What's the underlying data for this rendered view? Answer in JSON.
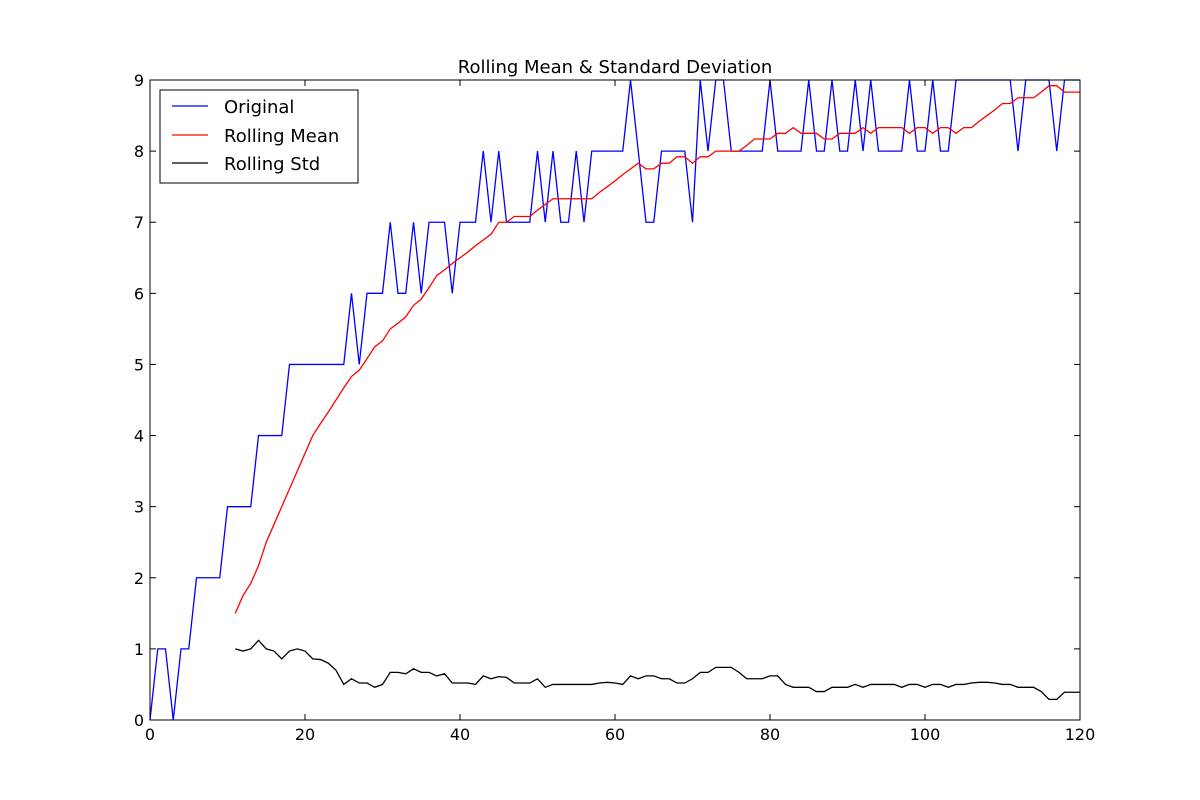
{
  "chart_data": {
    "type": "line",
    "title": "Rolling Mean & Standard Deviation",
    "xlabel": "",
    "ylabel": "",
    "xlim": [
      0,
      120
    ],
    "ylim": [
      0,
      9
    ],
    "xticks": [
      "0",
      "20",
      "40",
      "60",
      "80",
      "100",
      "120"
    ],
    "yticks": [
      "0",
      "1",
      "2",
      "3",
      "4",
      "5",
      "6",
      "7",
      "8",
      "9"
    ],
    "grid": false,
    "legend_position": "upper-left",
    "series": [
      {
        "name": "Original",
        "color": "#0000ff",
        "x": [
          0,
          1,
          2,
          3,
          4,
          5,
          6,
          7,
          8,
          9,
          10,
          11,
          12,
          13,
          14,
          15,
          16,
          17,
          18,
          19,
          20,
          21,
          22,
          23,
          24,
          25,
          26,
          27,
          28,
          29,
          30,
          31,
          32,
          33,
          34,
          35,
          36,
          37,
          38,
          39,
          40,
          41,
          42,
          43,
          44,
          45,
          46,
          47,
          48,
          49,
          50,
          51,
          52,
          53,
          54,
          55,
          56,
          57,
          58,
          59,
          60,
          61,
          62,
          63,
          64,
          65,
          66,
          67,
          68,
          69,
          70,
          71,
          72,
          73,
          74,
          75,
          76,
          77,
          78,
          79,
          80,
          81,
          82,
          83,
          84,
          85,
          86,
          87,
          88,
          89,
          90,
          91,
          92,
          93,
          94,
          95,
          96,
          97,
          98,
          99,
          100,
          101,
          102,
          103,
          104,
          105,
          106,
          107,
          108,
          109,
          110,
          111,
          112,
          113,
          114,
          115,
          116,
          117,
          118,
          119,
          120
        ],
        "y": [
          0,
          1,
          1,
          0,
          1,
          1,
          2,
          2,
          2,
          2,
          3,
          3,
          3,
          3,
          4,
          4,
          4,
          4,
          5,
          5,
          5,
          5,
          5,
          5,
          5,
          5,
          6,
          5,
          6,
          6,
          6,
          7,
          6,
          6,
          7,
          6,
          7,
          7,
          7,
          6,
          7,
          7,
          7,
          8,
          7,
          8,
          7,
          7,
          7,
          7,
          8,
          7,
          8,
          7,
          7,
          8,
          7,
          8,
          8,
          8,
          8,
          8,
          9,
          8,
          7,
          7,
          8,
          8,
          8,
          8,
          7,
          9,
          8,
          9,
          9,
          8,
          8,
          8,
          8,
          8,
          9,
          8,
          8,
          8,
          8,
          9,
          8,
          8,
          9,
          8,
          8,
          9,
          8,
          9,
          8,
          8,
          8,
          8,
          9,
          8,
          8,
          9,
          8,
          8,
          9,
          9,
          9,
          9,
          9,
          9,
          9,
          9,
          8,
          9,
          9,
          9,
          9,
          8,
          9,
          9,
          9
        ]
      },
      {
        "name": "Rolling Mean",
        "color": "#ff0000",
        "x": [
          11,
          12,
          13,
          14,
          15,
          16,
          17,
          18,
          19,
          20,
          21,
          22,
          23,
          24,
          25,
          26,
          27,
          28,
          29,
          30,
          31,
          32,
          33,
          34,
          35,
          36,
          37,
          38,
          39,
          40,
          41,
          42,
          43,
          44,
          45,
          46,
          47,
          48,
          49,
          50,
          51,
          52,
          53,
          54,
          55,
          56,
          57,
          58,
          59,
          60,
          61,
          62,
          63,
          64,
          65,
          66,
          67,
          68,
          69,
          70,
          71,
          72,
          73,
          74,
          75,
          76,
          77,
          78,
          79,
          80,
          81,
          82,
          83,
          84,
          85,
          86,
          87,
          88,
          89,
          90,
          91,
          92,
          93,
          94,
          95,
          96,
          97,
          98,
          99,
          100,
          101,
          102,
          103,
          104,
          105,
          106,
          107,
          108,
          109,
          110,
          111,
          112,
          113,
          114,
          115,
          116,
          117,
          118,
          119,
          120
        ],
        "y": [
          1.5,
          1.75,
          1.92,
          2.17,
          2.5,
          2.75,
          3.0,
          3.25,
          3.5,
          3.75,
          4.0,
          4.17,
          4.33,
          4.5,
          4.67,
          4.83,
          4.92,
          5.08,
          5.25,
          5.33,
          5.5,
          5.58,
          5.67,
          5.83,
          5.92,
          6.08,
          6.25,
          6.33,
          6.42,
          6.5,
          6.58,
          6.67,
          6.75,
          6.83,
          7.0,
          7.0,
          7.08,
          7.08,
          7.08,
          7.17,
          7.25,
          7.33,
          7.33,
          7.33,
          7.33,
          7.33,
          7.33,
          7.42,
          7.5,
          7.58,
          7.67,
          7.75,
          7.83,
          7.75,
          7.75,
          7.83,
          7.83,
          7.92,
          7.92,
          7.83,
          7.92,
          7.92,
          8.0,
          8.0,
          8.0,
          8.0,
          8.08,
          8.17,
          8.17,
          8.17,
          8.25,
          8.25,
          8.33,
          8.25,
          8.25,
          8.25,
          8.17,
          8.17,
          8.25,
          8.25,
          8.25,
          8.33,
          8.25,
          8.33,
          8.33,
          8.33,
          8.33,
          8.25,
          8.33,
          8.33,
          8.25,
          8.33,
          8.33,
          8.25,
          8.33,
          8.33,
          8.42,
          8.5,
          8.58,
          8.67,
          8.67,
          8.75,
          8.75,
          8.75,
          8.83,
          8.92,
          8.92,
          8.83,
          8.83,
          8.83
        ]
      },
      {
        "name": "Rolling Std",
        "color": "#000000",
        "x": [
          11,
          12,
          13,
          14,
          15,
          16,
          17,
          18,
          19,
          20,
          21,
          22,
          23,
          24,
          25,
          26,
          27,
          28,
          29,
          30,
          31,
          32,
          33,
          34,
          35,
          36,
          37,
          38,
          39,
          40,
          41,
          42,
          43,
          44,
          45,
          46,
          47,
          48,
          49,
          50,
          51,
          52,
          53,
          54,
          55,
          56,
          57,
          58,
          59,
          60,
          61,
          62,
          63,
          64,
          65,
          66,
          67,
          68,
          69,
          70,
          71,
          72,
          73,
          74,
          75,
          76,
          77,
          78,
          79,
          80,
          81,
          82,
          83,
          84,
          85,
          86,
          87,
          88,
          89,
          90,
          91,
          92,
          93,
          94,
          95,
          96,
          97,
          98,
          99,
          100,
          101,
          102,
          103,
          104,
          105,
          106,
          107,
          108,
          109,
          110,
          111,
          112,
          113,
          114,
          115,
          116,
          117,
          118,
          119,
          120
        ],
        "y": [
          1.0,
          0.97,
          1.0,
          1.12,
          1.0,
          0.97,
          0.86,
          0.97,
          1.0,
          0.97,
          0.86,
          0.85,
          0.8,
          0.7,
          0.5,
          0.58,
          0.52,
          0.52,
          0.46,
          0.5,
          0.67,
          0.67,
          0.65,
          0.72,
          0.67,
          0.67,
          0.62,
          0.65,
          0.52,
          0.52,
          0.52,
          0.5,
          0.62,
          0.58,
          0.61,
          0.6,
          0.52,
          0.52,
          0.52,
          0.58,
          0.46,
          0.5,
          0.5,
          0.5,
          0.5,
          0.5,
          0.5,
          0.52,
          0.53,
          0.52,
          0.5,
          0.62,
          0.58,
          0.62,
          0.62,
          0.58,
          0.58,
          0.52,
          0.52,
          0.58,
          0.67,
          0.67,
          0.74,
          0.74,
          0.74,
          0.67,
          0.58,
          0.58,
          0.58,
          0.62,
          0.62,
          0.5,
          0.46,
          0.46,
          0.46,
          0.4,
          0.4,
          0.46,
          0.46,
          0.46,
          0.5,
          0.46,
          0.5,
          0.5,
          0.5,
          0.5,
          0.46,
          0.5,
          0.5,
          0.46,
          0.5,
          0.5,
          0.46,
          0.5,
          0.5,
          0.52,
          0.53,
          0.53,
          0.52,
          0.5,
          0.5,
          0.46,
          0.46,
          0.46,
          0.4,
          0.29,
          0.29,
          0.39,
          0.39,
          0.39
        ]
      }
    ]
  }
}
